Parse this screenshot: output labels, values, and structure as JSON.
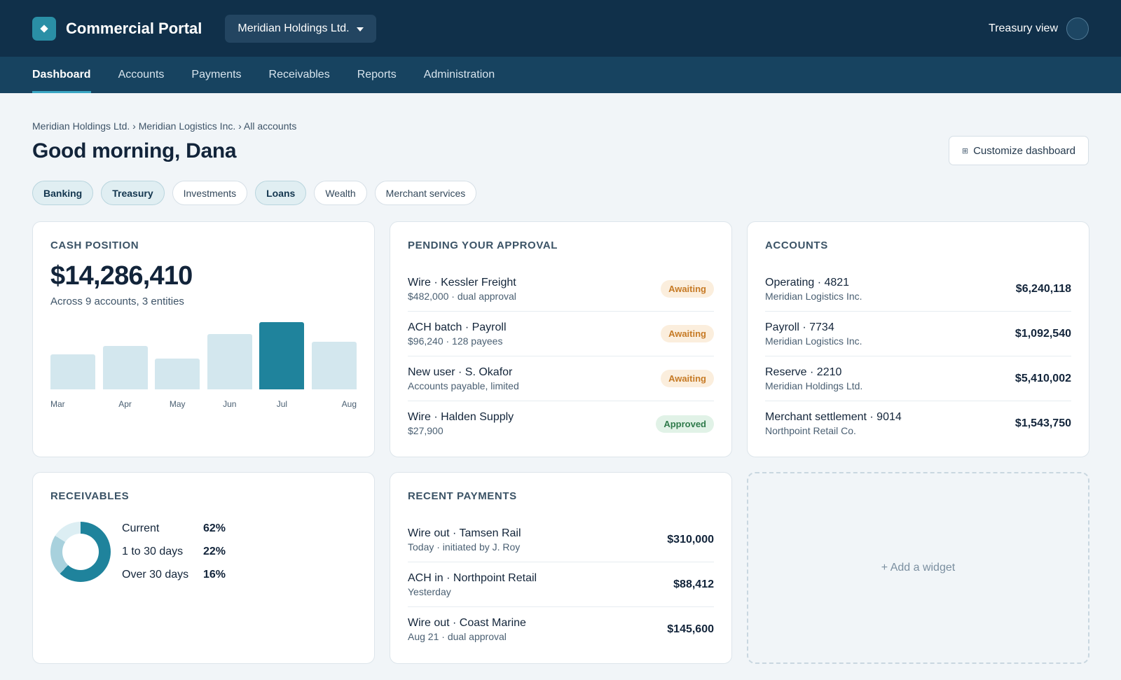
{
  "header": {
    "portal_title": "Commercial Portal",
    "entity": "Meridian Holdings Ltd.",
    "view_label": "Treasury view"
  },
  "nav": {
    "items": [
      "Dashboard",
      "Accounts",
      "Payments",
      "Receivables",
      "Reports",
      "Administration"
    ],
    "active": "Dashboard"
  },
  "page": {
    "breadcrumb": "Meridian Holdings Ltd. › Meridian Logistics Inc. › All accounts",
    "greeting": "Good morning, Dana",
    "customize_label": "Customize dashboard",
    "customize_icon": "⊞"
  },
  "chips": [
    {
      "label": "Banking",
      "selected": true
    },
    {
      "label": "Treasury",
      "selected": true
    },
    {
      "label": "Investments",
      "selected": false
    },
    {
      "label": "Loans",
      "selected": true
    },
    {
      "label": "Wealth",
      "selected": false
    },
    {
      "label": "Merchant services",
      "selected": false
    }
  ],
  "cash": {
    "title": "CASH POSITION",
    "amount": "$14,286,410",
    "sub": "Across 9 accounts, 3 entities"
  },
  "chart_data": {
    "type": "bar",
    "categories": [
      "Mar",
      "Apr",
      "May",
      "Jun",
      "Jul",
      "Aug"
    ],
    "values": [
      52,
      65,
      46,
      82,
      100,
      71
    ],
    "highlight": "Jul",
    "colors": {
      "bar": "#d3e7ee",
      "highlight": "#1f839c"
    }
  },
  "approvals": {
    "title": "PENDING YOUR APPROVAL",
    "items": [
      {
        "main": "Wire · Kessler Freight",
        "sub": "$482,000 · dual approval",
        "status": "Awaiting"
      },
      {
        "main": "ACH batch · Payroll",
        "sub": "$96,240 · 128 payees",
        "status": "Awaiting"
      },
      {
        "main": "New user · S. Okafor",
        "sub": "Accounts payable, limited",
        "status": "Awaiting"
      },
      {
        "main": "Wire · Halden Supply",
        "sub": "$27,900",
        "status": "Approved"
      }
    ]
  },
  "accounts": {
    "title": "ACCOUNTS",
    "items": [
      {
        "main": "Operating · 4821",
        "sub": "Meridian Logistics Inc.",
        "amount": "$6,240,118"
      },
      {
        "main": "Payroll · 7734",
        "sub": "Meridian Logistics Inc.",
        "amount": "$1,092,540"
      },
      {
        "main": "Reserve · 2210",
        "sub": "Meridian Holdings Ltd.",
        "amount": "$5,410,002"
      },
      {
        "main": "Merchant settlement · 9014",
        "sub": "Northpoint Retail Co.",
        "amount": "$1,543,750"
      }
    ]
  },
  "receivables": {
    "title": "RECEIVABLES",
    "segments": [
      {
        "label": "Current",
        "value": "62%",
        "color": "#1f839c"
      },
      {
        "label": "1 to 30 days",
        "value": "22%",
        "color": "#a8d1dd"
      },
      {
        "label": "Over 30 days",
        "value": "16%",
        "color": "#dceef3"
      }
    ]
  },
  "payments": {
    "title": "RECENT PAYMENTS",
    "items": [
      {
        "main": "Wire out · Tamsen Rail",
        "sub": "Today · initiated by J. Roy",
        "amount": "$310,000"
      },
      {
        "main": "ACH in · Northpoint Retail",
        "sub": "Yesterday",
        "amount": "$88,412"
      },
      {
        "main": "Wire out · Coast Marine",
        "sub": "Aug 21 · dual approval",
        "amount": "$145,600"
      }
    ]
  },
  "add_widget": {
    "label": "+ Add a widget"
  }
}
